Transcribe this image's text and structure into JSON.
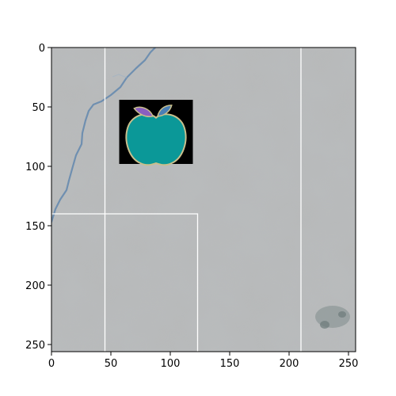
{
  "figure": {
    "kind": "image-with-axes",
    "scene": "grey concrete or stone surface with a thin blue crack along the upper-left and a small apple emoji on a black square",
    "x_ticks": [
      "0",
      "50",
      "100",
      "150",
      "200",
      "250"
    ],
    "y_ticks": [
      "0",
      "50",
      "100",
      "150",
      "200",
      "250"
    ],
    "xlim": [
      0,
      256
    ],
    "ylim": [
      256,
      0
    ],
    "colors": {
      "surface": "#b9bcbd",
      "crack": "#6f8fb0",
      "apple_body": "#0b9898",
      "apple_outline": "#c9bf8c",
      "apple_leaf": "#8a5fc0",
      "apple_stem": "#4a7fb5",
      "overlay_lines": "#ffffff",
      "icon_background": "#000000"
    },
    "overlay_lines_data": {
      "vertical_x": [
        45,
        210
      ],
      "rect_bottom_left": {
        "x0": 0,
        "x1": 123,
        "y_top": 140
      }
    },
    "icon_box_data": {
      "x0": 57,
      "x1": 119,
      "y0": 44,
      "y1": 98
    },
    "icon": "apple-icon"
  }
}
